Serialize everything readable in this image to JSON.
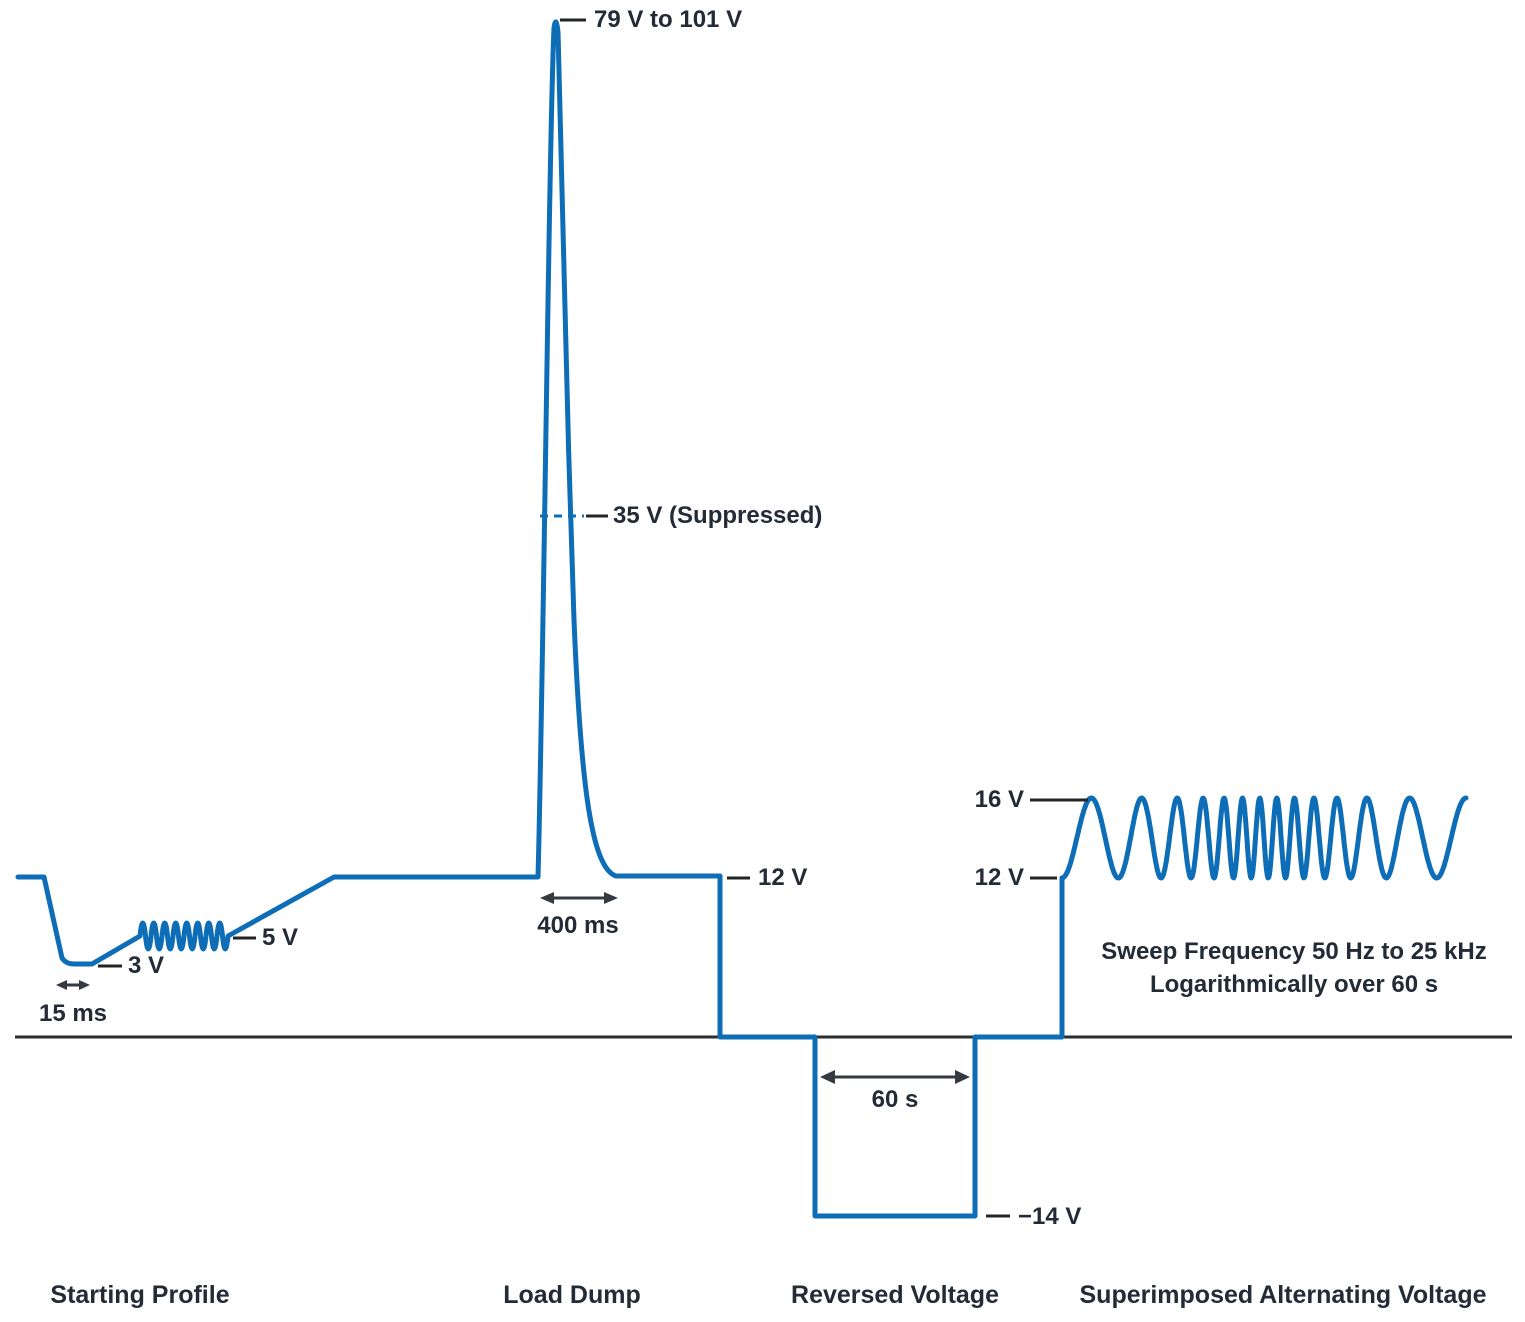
{
  "colors": {
    "waveform_blue": "#0d6db6",
    "label_text": "#232b36",
    "axis_black": "#2b2e31",
    "arrow_dark": "#343a40"
  },
  "labels": {
    "peak_voltage": "79 V to 101 V",
    "suppressed_voltage": "35 V (Suppressed)",
    "nominal_voltage": "12 V",
    "load_dump_duration": "400 ms",
    "cranking_voltage": "5 V",
    "dip_voltage": "3 V",
    "dip_duration": "15 ms",
    "reverse_duration": "60 s",
    "reverse_voltage": "−14 V",
    "sav_peak_voltage": "16 V",
    "sav_nominal_voltage": "12 V",
    "sweep_note_line1": "Sweep Frequency 50 Hz to 25 kHz",
    "sweep_note_line2": "Logarithmically over 60 s"
  },
  "sections": [
    {
      "label": "Starting Profile"
    },
    {
      "label": "Load Dump"
    },
    {
      "label": "Reversed Voltage"
    },
    {
      "label": "Superimposed Alternating Voltage"
    }
  ]
}
